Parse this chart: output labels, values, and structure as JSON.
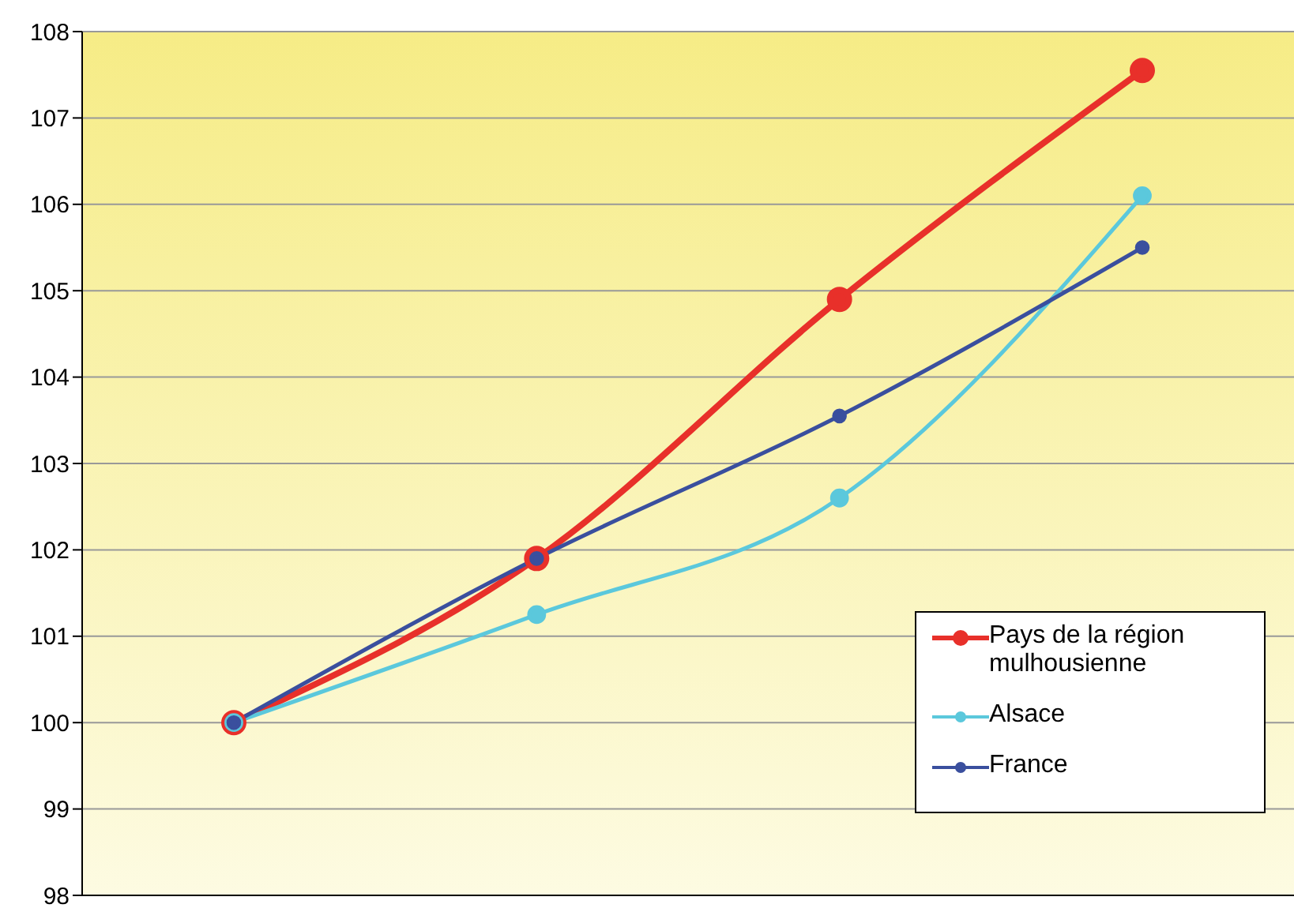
{
  "chart_data": {
    "type": "line",
    "categories": [
      null,
      null,
      null,
      null
    ],
    "series": [
      {
        "name": "Pays de la région mulhousienne",
        "color": "#e8302a",
        "values": [
          100,
          101.9,
          104.9,
          107.55
        ]
      },
      {
        "name": "Alsace",
        "color": "#5bc8dc",
        "values": [
          100,
          101.25,
          102.6,
          106.1
        ]
      },
      {
        "name": "France",
        "color": "#3a4f9e",
        "values": [
          100,
          101.9,
          103.55,
          105.5
        ]
      }
    ],
    "ylim": [
      98,
      108
    ],
    "yticks": [
      98,
      99,
      100,
      101,
      102,
      103,
      104,
      105,
      106,
      107,
      108
    ],
    "grid": "y",
    "legend": "bottom right",
    "marker": "circle"
  }
}
